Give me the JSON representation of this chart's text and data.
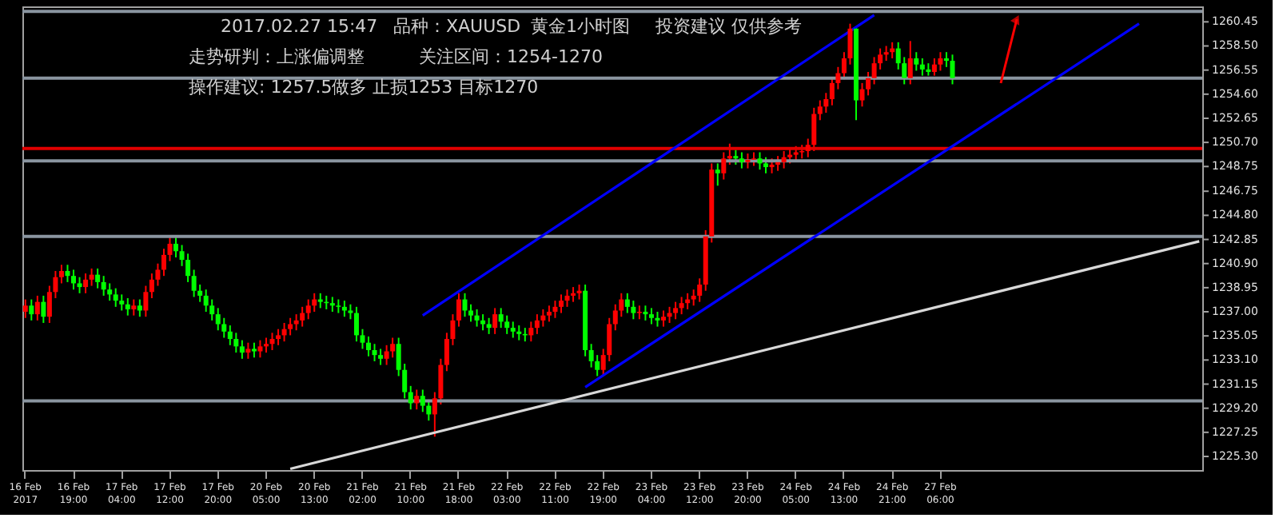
{
  "chart_data": {
    "type": "candlestick",
    "categories": [
      "16 Feb 2017",
      null,
      null,
      null,
      null,
      null,
      null,
      null,
      "16 Feb 19:00",
      null,
      null,
      null,
      null,
      null,
      null,
      null,
      "17 Feb 04:00",
      null,
      null,
      null,
      null,
      null,
      null,
      null,
      "17 Feb 12:00",
      null,
      null,
      null,
      null,
      null,
      null,
      null,
      "17 Feb 20:00",
      null,
      null,
      null,
      null,
      null,
      null,
      null,
      "20 Feb 05:00",
      null,
      null,
      null,
      null,
      null,
      null,
      null,
      "20 Feb 13:00",
      null,
      null,
      null,
      null,
      null,
      null,
      null,
      "21 Feb 02:00",
      null,
      null,
      null,
      null,
      null,
      null,
      null,
      "21 Feb 10:00",
      null,
      null,
      null,
      null,
      null,
      null,
      null,
      "21 Feb 18:00",
      null,
      null,
      null,
      null,
      null,
      null,
      null,
      "22 Feb 03:00",
      null,
      null,
      null,
      null,
      null,
      null,
      null,
      "22 Feb 11:00",
      null,
      null,
      null,
      null,
      null,
      null,
      null,
      "22 Feb 19:00",
      null,
      null,
      null,
      null,
      null,
      null,
      null,
      "23 Feb 04:00",
      null,
      null,
      null,
      null,
      null,
      null,
      null,
      "23 Feb 12:00",
      null,
      null,
      null,
      null,
      null,
      null,
      null,
      "23 Feb 20:00",
      null,
      null,
      null,
      null,
      null,
      null,
      null,
      "24 Feb 05:00",
      null,
      null,
      null,
      null,
      null,
      null,
      null,
      "24 Feb 13:00",
      null,
      null,
      null,
      null,
      null,
      null,
      null,
      "24 Feb 21:00",
      null,
      null,
      null,
      null,
      null,
      null,
      null,
      "27 Feb 06:00",
      null,
      null,
      null,
      null,
      null,
      null,
      null,
      null,
      null,
      null,
      null,
      null,
      null,
      null,
      null,
      null,
      null,
      null,
      null,
      null,
      null,
      null,
      null,
      null,
      null,
      null,
      null,
      null,
      null,
      null,
      null,
      null,
      null,
      null,
      null,
      null,
      null,
      null,
      null,
      null,
      null,
      null,
      null
    ],
    "ohlc": [
      [
        1237.0,
        1238.0,
        1236.5,
        1237.5
      ],
      [
        1237.5,
        1238.0,
        1236.3,
        1236.8
      ],
      [
        1236.8,
        1238.3,
        1236.3,
        1237.8
      ],
      [
        1237.8,
        1238.3,
        1236.1,
        1236.6
      ],
      [
        1236.6,
        1239.1,
        1236.1,
        1238.6
      ],
      [
        1238.6,
        1240.3,
        1238.1,
        1239.8
      ],
      [
        1239.8,
        1240.8,
        1239.3,
        1240.3
      ],
      [
        1240.3,
        1240.8,
        1239.4,
        1239.9
      ],
      [
        1239.9,
        1240.4,
        1238.8,
        1239.3
      ],
      [
        1239.3,
        1239.8,
        1238.5,
        1239.0
      ],
      [
        1239.0,
        1240.1,
        1238.5,
        1239.6
      ],
      [
        1239.6,
        1240.5,
        1239.1,
        1240.0
      ],
      [
        1240.0,
        1240.5,
        1238.9,
        1239.4
      ],
      [
        1239.4,
        1239.9,
        1238.3,
        1238.8
      ],
      [
        1238.8,
        1239.3,
        1237.9,
        1238.4
      ],
      [
        1238.4,
        1238.9,
        1237.4,
        1237.9
      ],
      [
        1237.9,
        1238.4,
        1237.1,
        1237.6
      ],
      [
        1237.6,
        1238.1,
        1236.7,
        1237.2
      ],
      [
        1237.2,
        1238.0,
        1236.7,
        1237.5
      ],
      [
        1237.5,
        1238.0,
        1236.6,
        1237.1
      ],
      [
        1237.1,
        1239.1,
        1236.6,
        1238.6
      ],
      [
        1238.6,
        1240.1,
        1238.1,
        1239.6
      ],
      [
        1239.6,
        1240.9,
        1239.1,
        1240.4
      ],
      [
        1240.4,
        1242.1,
        1239.9,
        1241.6
      ],
      [
        1241.6,
        1243.0,
        1241.1,
        1242.5
      ],
      [
        1242.5,
        1243.0,
        1241.4,
        1241.9
      ],
      [
        1241.9,
        1242.4,
        1240.7,
        1241.2
      ],
      [
        1241.2,
        1241.7,
        1239.4,
        1239.9
      ],
      [
        1239.9,
        1240.4,
        1238.2,
        1238.7
      ],
      [
        1238.7,
        1239.2,
        1237.8,
        1238.3
      ],
      [
        1238.3,
        1238.8,
        1237.0,
        1237.5
      ],
      [
        1237.5,
        1238.0,
        1236.3,
        1236.8
      ],
      [
        1236.8,
        1237.3,
        1235.5,
        1236.0
      ],
      [
        1236.0,
        1236.5,
        1234.9,
        1235.4
      ],
      [
        1235.4,
        1235.9,
        1234.3,
        1234.8
      ],
      [
        1234.8,
        1235.3,
        1233.7,
        1234.2
      ],
      [
        1234.2,
        1234.7,
        1233.2,
        1233.7
      ],
      [
        1233.7,
        1234.5,
        1233.2,
        1234.0
      ],
      [
        1234.0,
        1234.5,
        1233.3,
        1233.8
      ],
      [
        1233.8,
        1234.7,
        1233.3,
        1234.2
      ],
      [
        1234.2,
        1234.9,
        1233.7,
        1234.4
      ],
      [
        1234.4,
        1235.3,
        1233.9,
        1234.8
      ],
      [
        1234.8,
        1235.6,
        1234.3,
        1235.1
      ],
      [
        1235.1,
        1236.1,
        1234.6,
        1235.6
      ],
      [
        1235.6,
        1236.5,
        1235.1,
        1236.0
      ],
      [
        1236.0,
        1236.8,
        1235.5,
        1236.3
      ],
      [
        1236.3,
        1237.4,
        1235.8,
        1236.9
      ],
      [
        1236.9,
        1238.0,
        1236.4,
        1237.5
      ],
      [
        1237.5,
        1238.5,
        1237.0,
        1238.0
      ],
      [
        1238.0,
        1238.5,
        1237.3,
        1237.8
      ],
      [
        1237.8,
        1238.3,
        1237.2,
        1237.7
      ],
      [
        1237.7,
        1238.2,
        1237.0,
        1237.5
      ],
      [
        1237.5,
        1238.0,
        1236.9,
        1237.4
      ],
      [
        1237.4,
        1237.9,
        1236.6,
        1237.1
      ],
      [
        1237.1,
        1237.6,
        1236.4,
        1236.9
      ],
      [
        1236.9,
        1237.4,
        1234.6,
        1235.1
      ],
      [
        1235.1,
        1235.6,
        1234.0,
        1234.5
      ],
      [
        1234.5,
        1235.0,
        1233.4,
        1233.9
      ],
      [
        1233.9,
        1234.4,
        1233.0,
        1233.5
      ],
      [
        1233.5,
        1234.0,
        1232.7,
        1233.2
      ],
      [
        1233.2,
        1234.3,
        1232.7,
        1233.8
      ],
      [
        1233.8,
        1234.9,
        1233.3,
        1234.4
      ],
      [
        1234.4,
        1234.9,
        1231.8,
        1232.3
      ],
      [
        1232.3,
        1232.8,
        1230.0,
        1230.5
      ],
      [
        1230.5,
        1231.0,
        1229.1,
        1229.6
      ],
      [
        1229.6,
        1230.7,
        1229.1,
        1230.2
      ],
      [
        1230.2,
        1230.7,
        1228.9,
        1229.4
      ],
      [
        1229.4,
        1229.9,
        1228.2,
        1228.7
      ],
      [
        1228.7,
        1230.5,
        1226.9,
        1230.0
      ],
      [
        1230.0,
        1233.2,
        1229.5,
        1232.7
      ],
      [
        1232.7,
        1235.3,
        1232.2,
        1234.8
      ],
      [
        1234.8,
        1236.8,
        1234.3,
        1236.3
      ],
      [
        1236.3,
        1238.5,
        1235.8,
        1238.0
      ],
      [
        1238.0,
        1238.5,
        1236.6,
        1237.1
      ],
      [
        1237.1,
        1237.6,
        1236.2,
        1236.7
      ],
      [
        1236.7,
        1237.2,
        1235.8,
        1236.3
      ],
      [
        1236.3,
        1236.8,
        1235.5,
        1236.0
      ],
      [
        1236.0,
        1236.5,
        1235.2,
        1235.7
      ],
      [
        1235.7,
        1237.3,
        1235.2,
        1236.8
      ],
      [
        1236.8,
        1237.3,
        1235.7,
        1236.2
      ],
      [
        1236.2,
        1236.7,
        1235.2,
        1235.7
      ],
      [
        1235.7,
        1236.2,
        1234.9,
        1235.4
      ],
      [
        1235.4,
        1235.9,
        1234.7,
        1235.2
      ],
      [
        1235.2,
        1235.7,
        1234.6,
        1235.1
      ],
      [
        1235.1,
        1236.2,
        1234.6,
        1235.7
      ],
      [
        1235.7,
        1236.8,
        1235.2,
        1236.3
      ],
      [
        1236.3,
        1237.2,
        1235.8,
        1236.7
      ],
      [
        1236.7,
        1237.5,
        1236.2,
        1237.0
      ],
      [
        1237.0,
        1237.9,
        1236.5,
        1237.4
      ],
      [
        1237.4,
        1238.4,
        1236.9,
        1237.9
      ],
      [
        1237.9,
        1238.8,
        1237.4,
        1238.3
      ],
      [
        1238.3,
        1239.0,
        1237.8,
        1238.5
      ],
      [
        1238.5,
        1239.2,
        1238.0,
        1238.7
      ],
      [
        1238.7,
        1239.2,
        1233.4,
        1233.9
      ],
      [
        1233.9,
        1234.4,
        1232.5,
        1233.0
      ],
      [
        1233.0,
        1233.5,
        1231.8,
        1232.3
      ],
      [
        1232.3,
        1234.0,
        1231.8,
        1233.5
      ],
      [
        1233.5,
        1236.5,
        1233.0,
        1236.0
      ],
      [
        1236.0,
        1237.6,
        1235.5,
        1237.1
      ],
      [
        1237.1,
        1238.5,
        1236.6,
        1238.0
      ],
      [
        1238.0,
        1238.5,
        1236.9,
        1237.4
      ],
      [
        1237.4,
        1237.9,
        1236.4,
        1236.9
      ],
      [
        1236.9,
        1237.5,
        1236.4,
        1237.0
      ],
      [
        1237.0,
        1237.5,
        1236.3,
        1236.8
      ],
      [
        1236.8,
        1237.3,
        1236.0,
        1236.5
      ],
      [
        1236.5,
        1237.0,
        1235.8,
        1236.3
      ],
      [
        1236.3,
        1237.1,
        1235.8,
        1236.6
      ],
      [
        1236.6,
        1237.4,
        1236.1,
        1236.9
      ],
      [
        1236.9,
        1237.8,
        1236.4,
        1237.3
      ],
      [
        1237.3,
        1238.2,
        1236.8,
        1237.7
      ],
      [
        1237.7,
        1238.5,
        1237.2,
        1238.0
      ],
      [
        1238.0,
        1238.8,
        1237.5,
        1238.3
      ],
      [
        1238.3,
        1239.7,
        1237.8,
        1239.2
      ],
      [
        1239.2,
        1243.6,
        1238.7,
        1243.1
      ],
      [
        1243.1,
        1249.0,
        1242.6,
        1248.5
      ],
      [
        1248.5,
        1249.0,
        1247.2,
        1248.2
      ],
      [
        1248.2,
        1249.9,
        1247.7,
        1249.4
      ],
      [
        1249.4,
        1250.6,
        1248.9,
        1249.6
      ],
      [
        1249.6,
        1250.1,
        1248.9,
        1249.4
      ],
      [
        1249.4,
        1249.9,
        1248.6,
        1249.1
      ],
      [
        1249.1,
        1249.8,
        1248.6,
        1249.3
      ],
      [
        1249.3,
        1249.9,
        1248.8,
        1249.4
      ],
      [
        1249.4,
        1249.9,
        1248.5,
        1249.0
      ],
      [
        1249.0,
        1249.5,
        1248.2,
        1248.7
      ],
      [
        1248.7,
        1249.4,
        1248.2,
        1248.9
      ],
      [
        1248.9,
        1249.6,
        1248.4,
        1249.1
      ],
      [
        1249.1,
        1250.0,
        1248.6,
        1249.5
      ],
      [
        1249.5,
        1250.2,
        1249.0,
        1249.7
      ],
      [
        1249.7,
        1250.4,
        1249.2,
        1249.9
      ],
      [
        1249.9,
        1250.5,
        1249.4,
        1250.0
      ],
      [
        1250.0,
        1251.0,
        1249.5,
        1250.5
      ],
      [
        1250.5,
        1253.5,
        1250.0,
        1253.0
      ],
      [
        1253.0,
        1254.1,
        1252.5,
        1253.6
      ],
      [
        1253.6,
        1254.7,
        1253.1,
        1254.2
      ],
      [
        1254.2,
        1256.0,
        1253.7,
        1255.5
      ],
      [
        1255.5,
        1256.8,
        1255.0,
        1256.3
      ],
      [
        1256.3,
        1258.0,
        1255.8,
        1257.5
      ],
      [
        1257.5,
        1260.3,
        1257.0,
        1259.9
      ],
      [
        1259.9,
        1260.0,
        1252.5,
        1254.1
      ],
      [
        1254.1,
        1255.5,
        1253.6,
        1255.0
      ],
      [
        1255.0,
        1256.4,
        1254.5,
        1255.9
      ],
      [
        1255.9,
        1257.6,
        1255.4,
        1257.1
      ],
      [
        1257.1,
        1258.3,
        1256.6,
        1257.8
      ],
      [
        1257.8,
        1258.5,
        1257.3,
        1258.0
      ],
      [
        1258.0,
        1258.8,
        1257.5,
        1258.3
      ],
      [
        1258.3,
        1258.8,
        1256.6,
        1257.1
      ],
      [
        1257.1,
        1257.6,
        1255.4,
        1255.9
      ],
      [
        1255.9,
        1258.9,
        1255.4,
        1257.5
      ],
      [
        1257.5,
        1258.0,
        1256.5,
        1257.0
      ],
      [
        1257.0,
        1257.5,
        1256.1,
        1256.6
      ],
      [
        1256.6,
        1257.1,
        1256.1,
        1256.4
      ],
      [
        1256.4,
        1257.5,
        1256.1,
        1257.0
      ],
      [
        1257.0,
        1258.0,
        1256.5,
        1257.5
      ],
      [
        1257.5,
        1258.0,
        1256.8,
        1257.3
      ],
      [
        1257.3,
        1257.8,
        1255.4,
        1255.9
      ],
      null,
      null,
      null,
      null,
      null,
      null,
      null,
      null,
      null,
      null,
      null,
      null,
      null,
      null,
      null,
      null,
      null,
      null,
      null,
      null,
      null,
      null,
      null,
      null,
      null,
      null,
      null,
      null,
      null,
      null,
      null,
      null,
      null,
      null,
      null,
      null,
      null,
      null,
      null,
      null,
      null
    ],
    "colors": [
      "#ff0000",
      "#00ff00",
      "#ff0000",
      "#00ff00",
      "#ff0000",
      "#ff0000",
      "#ff0000",
      "#00ff00",
      "#00ff00",
      "#00ff00",
      "#ff0000",
      "#ff0000",
      "#00ff00",
      "#00ff00",
      "#00ff00",
      "#00ff00",
      "#00ff00",
      "#00ff00",
      "#ff0000",
      "#00ff00",
      "#ff0000",
      "#ff0000",
      "#ff0000",
      "#ff0000",
      "#ff0000",
      "#00ff00",
      "#00ff00",
      "#00ff00",
      "#00ff00",
      "#00ff00",
      "#00ff00",
      "#00ff00",
      "#00ff00",
      "#00ff00",
      "#00ff00",
      "#00ff00",
      "#00ff00",
      "#ff0000",
      "#00ff00",
      "#ff0000",
      "#ff0000",
      "#ff0000",
      "#ff0000",
      "#ff0000",
      "#ff0000",
      "#ff0000",
      "#ff0000",
      "#ff0000",
      "#ff0000",
      "#00ff00",
      "#00ff00",
      "#00ff00",
      "#00ff00",
      "#00ff00",
      "#00ff00",
      "#00ff00",
      "#00ff00",
      "#00ff00",
      "#00ff00",
      "#00ff00",
      "#ff0000",
      "#ff0000",
      "#00ff00",
      "#00ff00",
      "#00ff00",
      "#ff0000",
      "#00ff00",
      "#00ff00",
      "#ff0000",
      "#ff0000",
      "#ff0000",
      "#ff0000",
      "#ff0000",
      "#00ff00",
      "#00ff00",
      "#00ff00",
      "#00ff00",
      "#00ff00",
      "#ff0000",
      "#00ff00",
      "#00ff00",
      "#00ff00",
      "#00ff00",
      "#00ff00",
      "#ff0000",
      "#ff0000",
      "#ff0000",
      "#ff0000",
      "#ff0000",
      "#ff0000",
      "#ff0000",
      "#ff0000",
      "#ff0000",
      "#00ff00",
      "#00ff00",
      "#00ff00",
      "#ff0000",
      "#ff0000",
      "#ff0000",
      "#ff0000",
      "#00ff00",
      "#00ff00",
      "#ff0000",
      "#00ff00",
      "#00ff00",
      "#00ff00",
      "#ff0000",
      "#ff0000",
      "#ff0000",
      "#ff0000",
      "#ff0000",
      "#ff0000",
      "#ff0000",
      "#ff0000",
      "#ff0000",
      "#00ff00",
      "#ff0000",
      "#ff0000",
      "#00ff00",
      "#00ff00",
      "#ff0000",
      "#ff0000",
      "#00ff00",
      "#00ff00",
      "#ff0000",
      "#ff0000",
      "#ff0000",
      "#ff0000",
      "#ff0000",
      "#ff0000",
      "#ff0000",
      "#ff0000",
      "#ff0000",
      "#ff0000",
      "#ff0000",
      "#ff0000",
      "#ff0000",
      "#ff0000",
      "#00ff00",
      "#ff0000",
      "#ff0000",
      "#ff0000",
      "#ff0000",
      "#ff0000",
      "#ff0000",
      "#00ff00",
      "#00ff00",
      "#ff0000",
      "#00ff00",
      "#00ff00",
      "#00ff00",
      "#ff0000",
      "#ff0000",
      "#00ff00",
      "#00ff00",
      null,
      null,
      null,
      null,
      null,
      null,
      null,
      null,
      null,
      null,
      null,
      null,
      null,
      null,
      null,
      null,
      null,
      null,
      null,
      null,
      null,
      null,
      null,
      null,
      null,
      null,
      null,
      null,
      null,
      null,
      null,
      null,
      null,
      null,
      null,
      null,
      null,
      null,
      null,
      null,
      null
    ],
    "series": [
      {
        "type": "line",
        "color": "#0000ff",
        "values": [
          null,
          null,
          null,
          null,
          null,
          null,
          null,
          null,
          null,
          null,
          null,
          null,
          null,
          null,
          null,
          null,
          null,
          null,
          null,
          null,
          null,
          null,
          null,
          null,
          null,
          null,
          null,
          null,
          null,
          null,
          null,
          null,
          null,
          null,
          null,
          null,
          null,
          null,
          null,
          null,
          null,
          null,
          null,
          null,
          null,
          null,
          null,
          null,
          null,
          null,
          null,
          null,
          null,
          null,
          null,
          null,
          null,
          null,
          null,
          null,
          null,
          null,
          null,
          null,
          null,
          null,
          1236.7,
          null,
          null,
          null,
          null,
          null,
          null,
          null,
          null,
          null,
          null,
          null,
          null,
          null,
          null,
          null,
          null,
          null,
          null,
          null,
          null,
          null,
          null,
          null,
          null,
          null,
          null,
          null,
          null,
          null,
          null,
          null,
          null,
          null,
          null,
          null,
          null,
          null,
          null,
          null,
          null,
          null,
          null,
          null,
          null,
          null,
          null,
          null,
          null,
          null,
          null,
          null,
          null,
          null,
          null,
          null,
          null,
          null,
          null,
          null,
          null,
          null,
          null,
          null,
          null,
          null,
          null,
          null,
          null,
          null,
          null,
          null,
          null,
          null,
          null,
          1261.0,
          null,
          null,
          null,
          null,
          null,
          null,
          null,
          null,
          null,
          null,
          null,
          null,
          null,
          null,
          null,
          null,
          null,
          null,
          null,
          null,
          null,
          null,
          null,
          null,
          null,
          null,
          null,
          null,
          null,
          null,
          null,
          null,
          null,
          null,
          null,
          null,
          null,
          null,
          null,
          null,
          null,
          null,
          null,
          null,
          null,
          null,
          null,
          null,
          null,
          null,
          null,
          null,
          null,
          null
        ]
      },
      {
        "type": "line",
        "color": "#0000ff",
        "values": [
          null,
          null,
          null,
          null,
          null,
          null,
          null,
          null,
          null,
          null,
          null,
          null,
          null,
          null,
          null,
          null,
          null,
          null,
          null,
          null,
          null,
          null,
          null,
          null,
          null,
          null,
          null,
          null,
          null,
          null,
          null,
          null,
          null,
          null,
          null,
          null,
          null,
          null,
          null,
          null,
          null,
          null,
          null,
          null,
          null,
          null,
          null,
          null,
          null,
          null,
          null,
          null,
          null,
          null,
          null,
          null,
          null,
          null,
          null,
          null,
          null,
          null,
          null,
          null,
          null,
          null,
          null,
          null,
          null,
          null,
          null,
          null,
          null,
          null,
          null,
          null,
          null,
          null,
          null,
          null,
          null,
          null,
          null,
          null,
          null,
          null,
          null,
          null,
          null,
          null,
          null,
          null,
          null,
          1230.9,
          null,
          null,
          null,
          null,
          null,
          null,
          null,
          null,
          null,
          null,
          null,
          null,
          null,
          null,
          null,
          null,
          null,
          null,
          null,
          null,
          null,
          null,
          null,
          null,
          null,
          null,
          null,
          null,
          null,
          null,
          null,
          null,
          null,
          null,
          null,
          null,
          null,
          null,
          null,
          null,
          null,
          null,
          null,
          null,
          null,
          null,
          null,
          null,
          null,
          null,
          null,
          null,
          null,
          null,
          null,
          null,
          null,
          null,
          null,
          null,
          null,
          null,
          null,
          null,
          null,
          null,
          null,
          null,
          null,
          null,
          null,
          null,
          null,
          null,
          null,
          null,
          null,
          null,
          null,
          null,
          null,
          null,
          null,
          null,
          null,
          null,
          null,
          null,
          null,
          null,
          null,
          1260.3,
          null,
          null,
          null,
          null,
          null,
          null,
          null,
          null,
          null,
          null
        ]
      },
      {
        "type": "line",
        "color": "#d8d8d8",
        "values": [
          null,
          null,
          null,
          null,
          null,
          null,
          null,
          null,
          null,
          null,
          null,
          null,
          null,
          null,
          null,
          null,
          null,
          null,
          null,
          null,
          null,
          null,
          null,
          null,
          null,
          null,
          null,
          null,
          null,
          null,
          null,
          null,
          null,
          null,
          null,
          null,
          null,
          null,
          null,
          null,
          null,
          null,
          null,
          null,
          1224.3,
          null,
          null,
          null,
          null,
          null,
          null,
          null,
          null,
          null,
          null,
          null,
          null,
          null,
          null,
          null,
          null,
          null,
          null,
          null,
          null,
          null,
          null,
          null,
          null,
          null,
          null,
          null,
          null,
          null,
          null,
          null,
          null,
          null,
          null,
          null,
          null,
          null,
          null,
          null,
          null,
          null,
          null,
          null,
          null,
          null,
          null,
          null,
          null,
          null,
          null,
          null,
          null,
          null,
          null,
          null,
          null,
          null,
          null,
          null,
          null,
          null,
          null,
          null,
          null,
          null,
          null,
          null,
          null,
          null,
          null,
          null,
          null,
          null,
          null,
          null,
          null,
          null,
          null,
          null,
          null,
          null,
          null,
          null,
          null,
          null,
          null,
          null,
          null,
          null,
          null,
          null,
          null,
          null,
          null,
          null,
          null,
          null,
          null,
          null,
          null,
          null,
          null,
          null,
          null,
          null,
          null,
          null,
          null,
          null,
          null,
          null,
          null,
          null,
          null,
          null,
          null,
          null,
          null,
          null,
          null,
          null,
          null,
          null,
          null,
          null,
          null,
          null,
          null,
          null,
          null,
          null,
          null,
          null,
          null,
          null,
          null,
          null,
          null,
          null,
          null,
          null,
          null,
          null,
          null,
          null,
          null,
          null,
          null,
          null,
          null,
          1242.7
        ]
      }
    ],
    "ref_lines": [
      {
        "axis": "y",
        "value": 1261.3,
        "color": "#8a95a0"
      },
      {
        "axis": "y",
        "value": 1255.9,
        "color": "#8a95a0"
      },
      {
        "axis": "y",
        "value": 1250.2,
        "color": "#e00000"
      },
      {
        "axis": "y",
        "value": 1249.2,
        "color": "#8a95a0"
      },
      {
        "axis": "y",
        "value": 1243.1,
        "color": "#8a95a0"
      },
      {
        "axis": "y",
        "value": 1229.8,
        "color": "#8a95a0"
      }
    ],
    "ylim": [
      1224.2,
      1261.7
    ],
    "yticks": [
      {
        "value": 1260.45,
        "label": "1260.45"
      },
      {
        "value": 1258.5,
        "label": "1258.50"
      },
      {
        "value": 1256.55,
        "label": "1256.55"
      },
      {
        "value": 1254.6,
        "label": "1254.60"
      },
      {
        "value": 1252.65,
        "label": "1252.65"
      },
      {
        "value": 1250.7,
        "label": "1250.70"
      },
      {
        "value": 1248.75,
        "label": "1248.75"
      },
      {
        "value": 1246.75,
        "label": "1246.75"
      },
      {
        "value": 1244.8,
        "label": "1244.80"
      },
      {
        "value": 1242.85,
        "label": "1242.85"
      },
      {
        "value": 1240.9,
        "label": "1240.90"
      },
      {
        "value": 1238.95,
        "label": "1238.95"
      },
      {
        "value": 1237.0,
        "label": "1237.00"
      },
      {
        "value": 1235.05,
        "label": "1235.05"
      },
      {
        "value": 1233.1,
        "label": "1233.10"
      },
      {
        "value": 1231.15,
        "label": "1231.15"
      },
      {
        "value": 1229.2,
        "label": "1229.20"
      },
      {
        "value": 1227.25,
        "label": "1227.25"
      },
      {
        "value": 1225.3,
        "label": "1225.30"
      }
    ],
    "annotations": [
      "2017.02.27 15:47",
      "品种：XAUUSD",
      "黄金1小时图",
      "投资建议 仅供参考",
      "走势研判：上涨偏调整",
      "关注区间：1254-1270",
      "操作建议: 1257.5做多 止损1253 目标1270"
    ],
    "grid": false
  }
}
